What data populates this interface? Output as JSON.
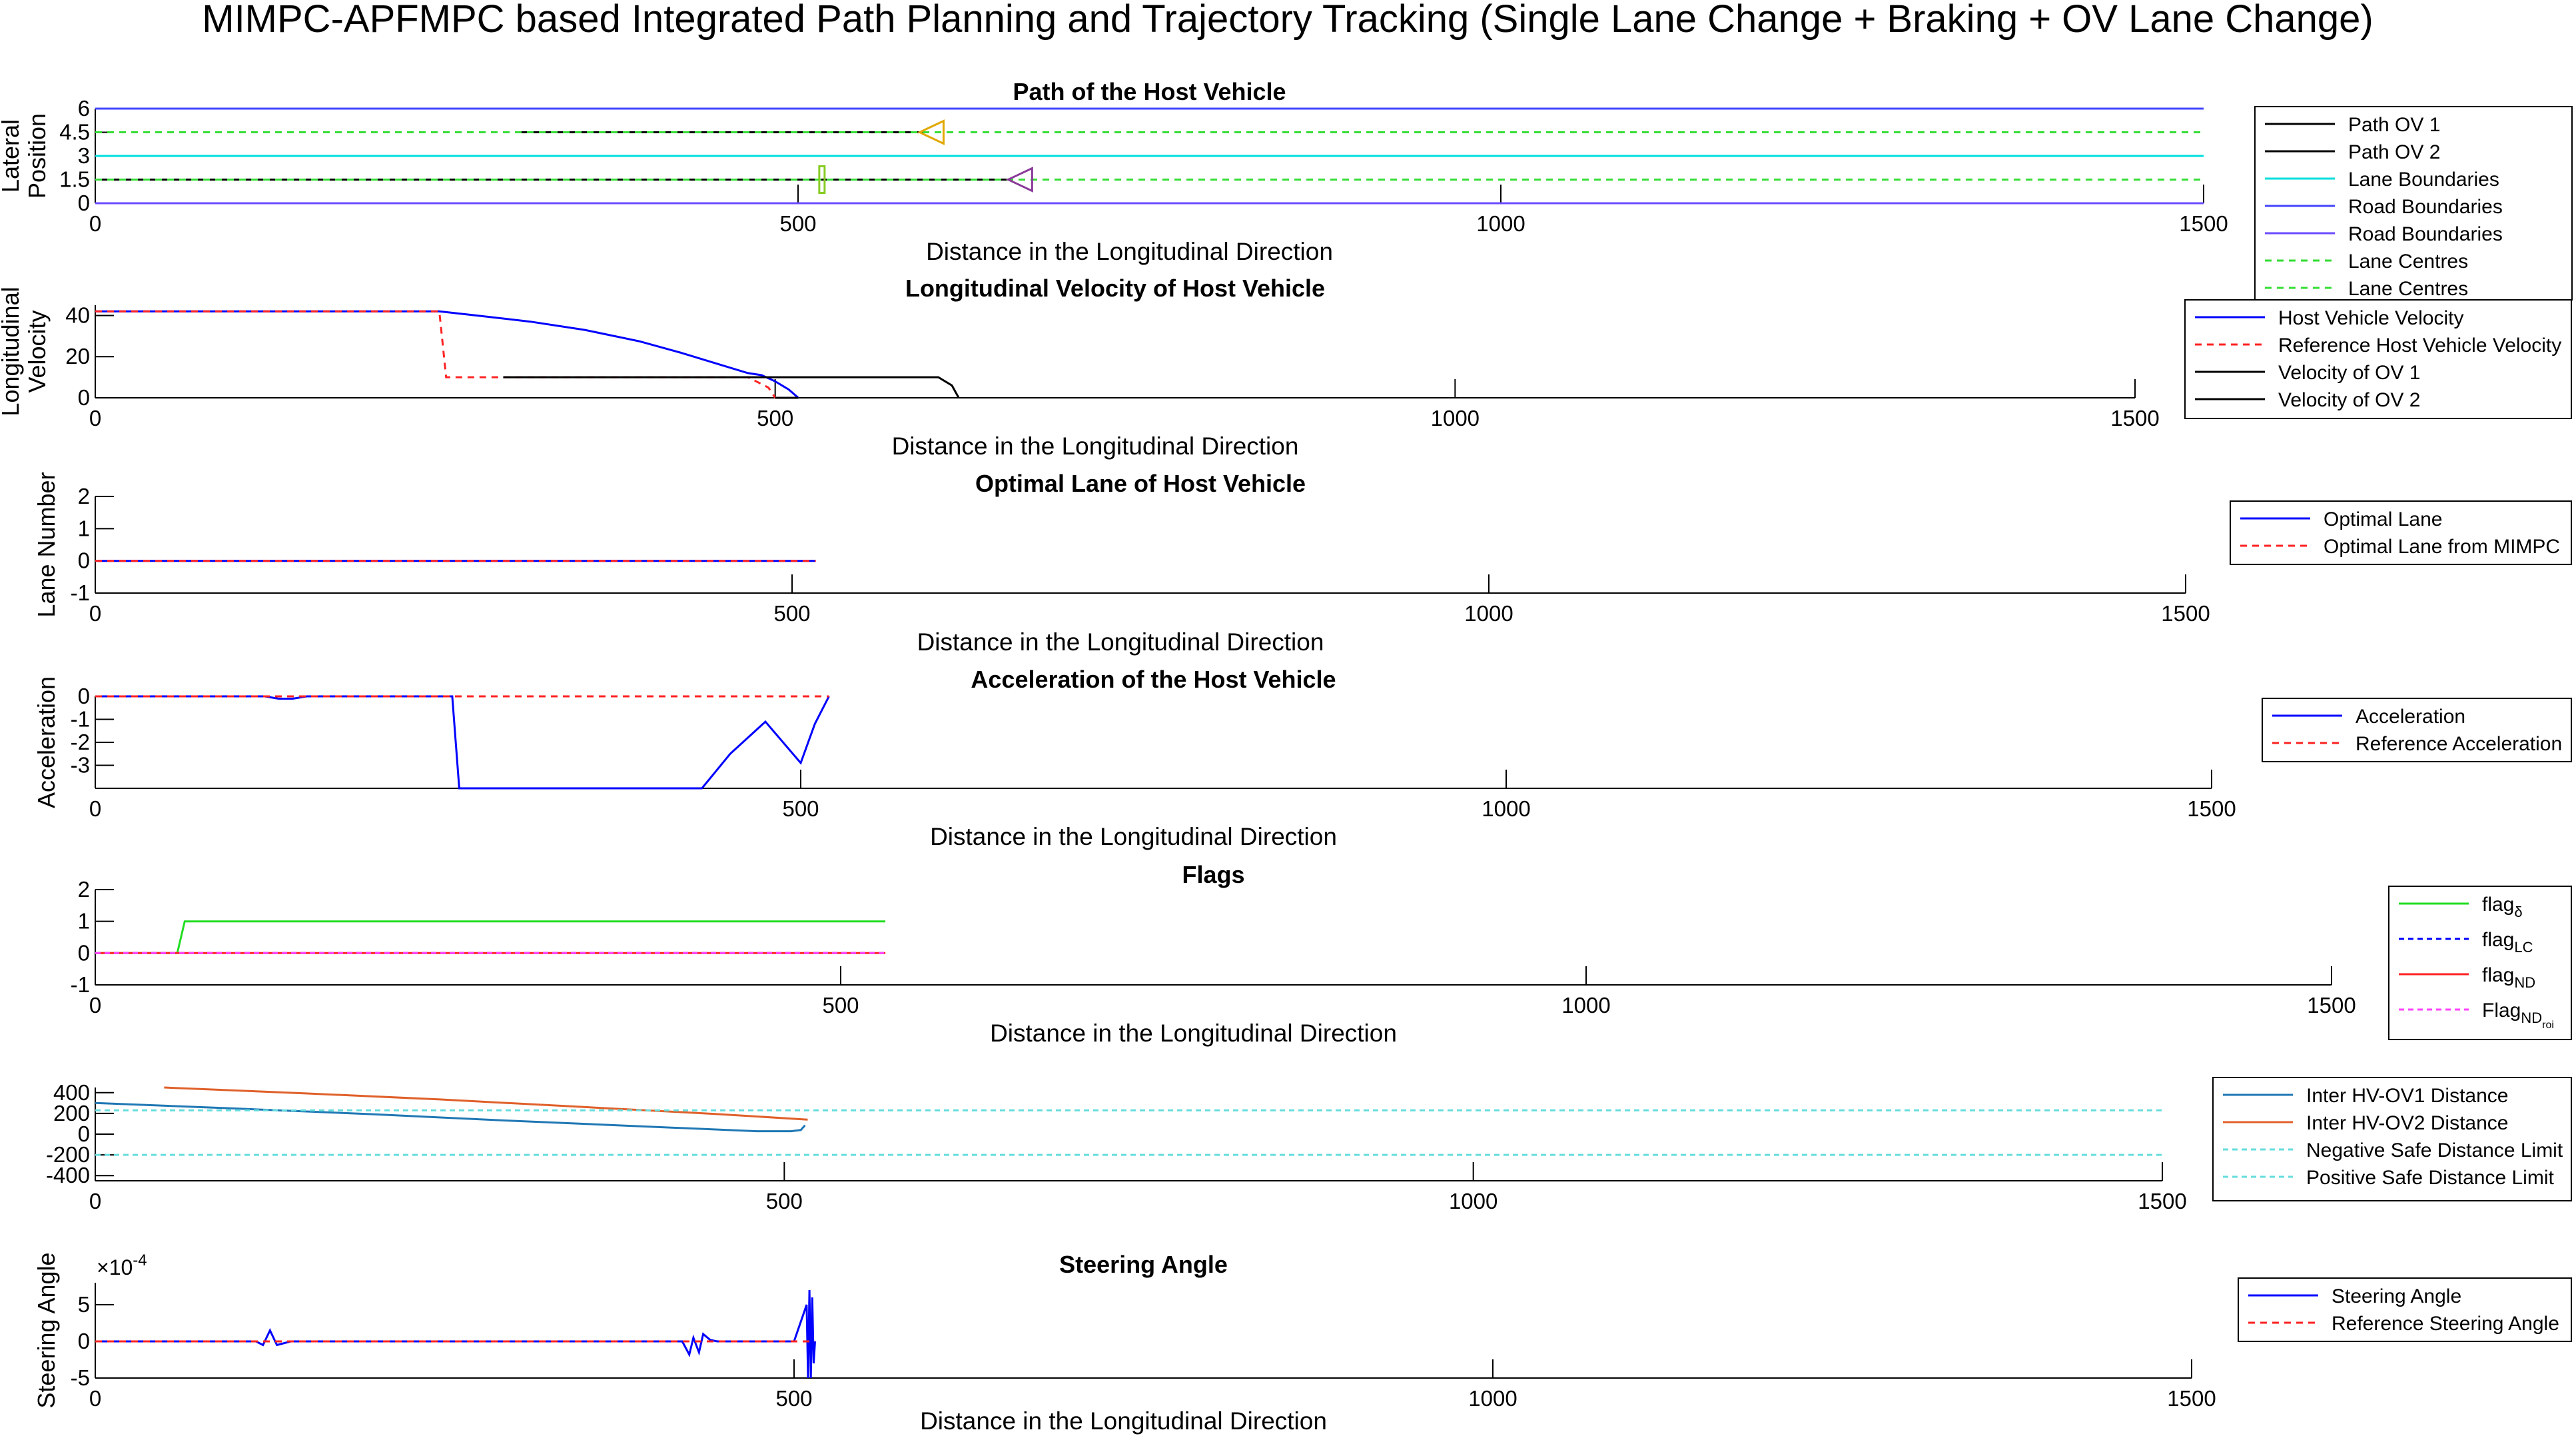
{
  "figure": {
    "title": "MIMPC-APFMPC based Integrated Path Planning and Trajectory Tracking (Single Lane Change + Braking + OV Lane Change)"
  },
  "chart_data": [
    {
      "type": "line",
      "title": "Path of the Host Vehicle",
      "xlabel": "Distance in the Longitudinal Direction",
      "ylabel": [
        "Lateral",
        "Position"
      ],
      "xlim": [
        0,
        1500
      ],
      "ylim": [
        0,
        6
      ],
      "xticks": [
        0,
        500,
        1000,
        1500
      ],
      "yticks": [
        0,
        1.5,
        3,
        4.5,
        6
      ],
      "ytick_labels": [
        "0",
        "1.5",
        "3",
        "4.5",
        "6"
      ],
      "legend_position": "right",
      "series": [
        {
          "name": "Path OV 1",
          "color": "#000000",
          "dash": "",
          "x": [
            300,
            590
          ],
          "y": [
            4.5,
            4.5
          ]
        },
        {
          "name": "Path OV 2",
          "color": "#000000",
          "dash": "",
          "x": [
            0,
            530,
            650
          ],
          "y": [
            1.5,
            1.5,
            1.5
          ]
        },
        {
          "name": "Lane Boundaries",
          "color": "#00dddd",
          "dash": "",
          "x": [
            0,
            1500
          ],
          "y": [
            3,
            3
          ]
        },
        {
          "name": "Road Boundaries",
          "color": "#4444ff",
          "dash": "",
          "x": [
            0,
            1500
          ],
          "y": [
            6,
            6
          ]
        },
        {
          "name": "Road Boundaries",
          "color": "#6b4bff",
          "dash": "",
          "x": [
            0,
            1500
          ],
          "y": [
            0,
            0
          ]
        },
        {
          "name": "Lane Centres",
          "color": "#33dd33",
          "dash": "10,8",
          "x": [
            0,
            1500
          ],
          "y": [
            4.5,
            4.5
          ]
        },
        {
          "name": "Lane Centres",
          "color": "#33dd33",
          "dash": "10,8",
          "x": [
            0,
            1500
          ],
          "y": [
            1.5,
            1.5
          ]
        }
      ],
      "markers": [
        {
          "label": "ov1-marker",
          "shape": "triangle-left",
          "color": "#e0a800",
          "x": 595,
          "y": 4.5
        },
        {
          "label": "ov2-marker",
          "shape": "triangle-left",
          "color": "#8b3a9a",
          "x": 658,
          "y": 1.5
        },
        {
          "label": "host-marker",
          "shape": "bar",
          "color": "#88cc22",
          "x": 517,
          "y": 1.5
        }
      ]
    },
    {
      "type": "line",
      "title": "Longitudinal Velocity of Host Vehicle",
      "xlabel": "Distance in the Longitudinal Direction",
      "ylabel": [
        "Longitudinal",
        "Velocity"
      ],
      "xlim": [
        0,
        1500
      ],
      "ylim": [
        0,
        45
      ],
      "xticks": [
        0,
        500,
        1000,
        1500
      ],
      "yticks": [
        0,
        20,
        40
      ],
      "ytick_labels": [
        "0",
        "20",
        "40"
      ],
      "legend_position": "right",
      "series": [
        {
          "name": "Host Vehicle Velocity",
          "color": "#0000ff",
          "dash": "",
          "x": [
            0,
            253,
            280,
            320,
            360,
            400,
            430,
            460,
            480,
            490,
            500,
            510,
            517
          ],
          "y": [
            42,
            42,
            40,
            37,
            33,
            27.5,
            22,
            16,
            12,
            11,
            8,
            4,
            0
          ]
        },
        {
          "name": "Reference Host Vehicle Velocity",
          "color": "#ff2222",
          "dash": "10,8",
          "x": [
            0,
            253,
            258,
            300,
            480,
            495,
            500
          ],
          "y": [
            42,
            42,
            10,
            10,
            10,
            5,
            0
          ]
        },
        {
          "name": "Velocity of OV 1",
          "color": "#000000",
          "dash": "",
          "x": [
            300,
            620,
            630,
            635
          ],
          "y": [
            10,
            10,
            6,
            0
          ]
        },
        {
          "name": "Velocity of OV 2",
          "color": "#000000",
          "dash": "",
          "x": [
            500,
            517
          ],
          "y": [
            0,
            0
          ]
        }
      ]
    },
    {
      "type": "line",
      "title": "Optimal Lane of Host Vehicle",
      "xlabel": "Distance in the Longitudinal Direction",
      "ylabel": [
        "Lane Number"
      ],
      "xlim": [
        0,
        1500
      ],
      "ylim": [
        -1,
        2
      ],
      "xticks": [
        0,
        500,
        1000,
        1500
      ],
      "yticks": [
        -1,
        0,
        1,
        2
      ],
      "ytick_labels": [
        "-1",
        "0",
        "1",
        "2"
      ],
      "legend_position": "right",
      "series": [
        {
          "name": "Optimal Lane",
          "color": "#0000ff",
          "dash": "",
          "x": [
            0,
            517
          ],
          "y": [
            0,
            0
          ]
        },
        {
          "name": "Optimal Lane from MIMPC",
          "color": "#ff2222",
          "dash": "10,8",
          "x": [
            0,
            517
          ],
          "y": [
            0,
            0
          ]
        }
      ]
    },
    {
      "type": "line",
      "title": "Acceleration of the Host Vehicle",
      "xlabel": "Distance in the Longitudinal Direction",
      "ylabel": [
        "Acceleration"
      ],
      "xlim": [
        0,
        1500
      ],
      "ylim": [
        -4,
        0
      ],
      "xticks": [
        0,
        500,
        1000,
        1500
      ],
      "yticks": [
        -3,
        -2,
        -1,
        0
      ],
      "ytick_labels": [
        "-3",
        "-2",
        "-1",
        "0"
      ],
      "legend_position": "right",
      "series": [
        {
          "name": "Acceleration",
          "color": "#0000ff",
          "dash": "",
          "x": [
            0,
            120,
            130,
            140,
            150,
            253,
            258,
            430,
            450,
            475,
            500,
            510,
            520
          ],
          "y": [
            0,
            0,
            -0.1,
            -0.1,
            0,
            0,
            -4,
            -4,
            -2.5,
            -1.1,
            -2.9,
            -1.2,
            0
          ]
        },
        {
          "name": "Reference Acceleration",
          "color": "#ff2222",
          "dash": "10,8",
          "x": [
            0,
            520
          ],
          "y": [
            0,
            0
          ]
        }
      ]
    },
    {
      "type": "line",
      "title": "Flags",
      "xlabel": "Distance in the Longitudinal Direction",
      "ylabel": [],
      "xlim": [
        0,
        1500
      ],
      "ylim": [
        -1,
        2
      ],
      "xticks": [
        0,
        500,
        1000,
        1500
      ],
      "yticks": [
        -1,
        0,
        1,
        2
      ],
      "ytick_labels": [
        "-1",
        "0",
        "1",
        "2"
      ],
      "legend_position": "right",
      "series": [
        {
          "name": "flag",
          "sub": "δ",
          "color": "#22dd22",
          "dash": "",
          "x": [
            0,
            55,
            60,
            530
          ],
          "y": [
            0,
            0,
            1,
            1
          ]
        },
        {
          "name": "flag",
          "sub": "LC",
          "color": "#0000ff",
          "dash": "8,6",
          "x": [
            0,
            530
          ],
          "y": [
            0,
            0
          ]
        },
        {
          "name": "flag",
          "sub": "ND",
          "color": "#ff2222",
          "dash": "",
          "x": [
            0,
            530
          ],
          "y": [
            0,
            0
          ]
        },
        {
          "name": "Flag",
          "sub": "ND",
          "subsub": "roi",
          "color": "#ff44ff",
          "dash": "8,6",
          "x": [
            0,
            530
          ],
          "y": [
            0,
            0
          ]
        }
      ]
    },
    {
      "type": "line",
      "title": "",
      "xlabel": "",
      "ylabel": [],
      "xlim": [
        0,
        1500
      ],
      "ylim": [
        -450,
        450
      ],
      "xticks": [
        0,
        500,
        1000,
        1500
      ],
      "yticks": [
        -400,
        -200,
        0,
        200,
        400
      ],
      "ytick_labels": [
        "-400",
        "-200",
        "0",
        "200",
        "400"
      ],
      "legend_position": "right",
      "series": [
        {
          "name": "Inter HV-OV1 Distance",
          "color": "#1f77b4",
          "dash": "",
          "x": [
            0,
            100,
            200,
            300,
            400,
            480,
            505,
            512,
            515
          ],
          "y": [
            300,
            248,
            193,
            130,
            73,
            28,
            28,
            40,
            85
          ]
        },
        {
          "name": "Inter HV-OV2 Distance",
          "color": "#e0602a",
          "dash": "",
          "x": [
            50,
            150,
            250,
            350,
            450,
            517
          ],
          "y": [
            450,
            395,
            335,
            265,
            195,
            140
          ]
        },
        {
          "name": "Negative Safe Distance Limit",
          "color": "#66dddd",
          "dash": "8,6",
          "x": [
            0,
            1500
          ],
          "y": [
            -200,
            -200
          ]
        },
        {
          "name": "Positive Safe Distance Limit",
          "color": "#66dddd",
          "dash": "8,6",
          "x": [
            0,
            1500
          ],
          "y": [
            230,
            230
          ]
        }
      ]
    },
    {
      "type": "line",
      "title": "Steering Angle",
      "xlabel": "Distance in the Longitudinal Direction",
      "ylabel": [
        "Steering Angle"
      ],
      "exponent_label": "×10",
      "exponent_power": "-4",
      "xlim": [
        0,
        1500
      ],
      "ylim": [
        -5,
        8
      ],
      "xticks": [
        0,
        500,
        1000,
        1500
      ],
      "yticks": [
        -5,
        0,
        5
      ],
      "ytick_labels": [
        "-5",
        "0",
        "5"
      ],
      "legend_position": "right",
      "series": [
        {
          "name": "Steering Angle",
          "color": "#0000ff",
          "dash": "",
          "x": [
            0,
            115,
            120,
            125,
            130,
            140,
            420,
            425,
            428,
            432,
            435,
            440,
            445,
            500,
            509,
            510,
            511,
            512,
            513,
            514,
            515
          ],
          "y": [
            0,
            0,
            -0.5,
            1.5,
            -0.5,
            0,
            0,
            -1.8,
            0.5,
            -1.5,
            1.0,
            0.2,
            0,
            0,
            5,
            -5,
            7,
            -5,
            6,
            -3,
            0
          ]
        },
        {
          "name": "Reference Steering Angle",
          "color": "#ff2222",
          "dash": "10,8",
          "x": [
            0,
            515
          ],
          "y": [
            0,
            0
          ]
        }
      ]
    }
  ]
}
